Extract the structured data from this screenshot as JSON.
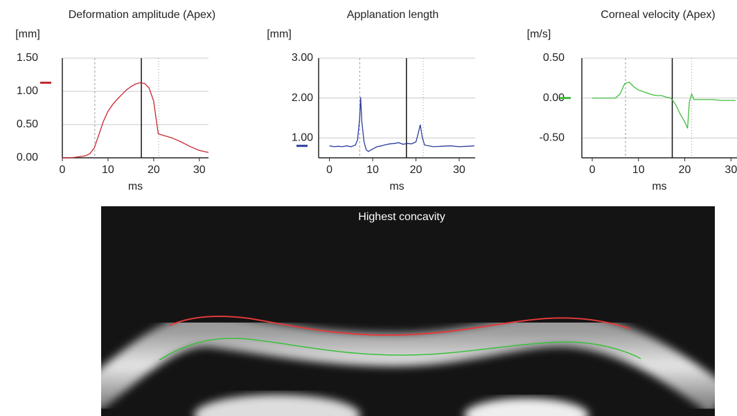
{
  "chart_data": [
    {
      "type": "line",
      "title": "Deformation amplitude (Apex)",
      "y_label": "[mm]",
      "x_label": "ms",
      "xlim": [
        0,
        32
      ],
      "xticks": [
        0,
        10,
        20,
        30
      ],
      "ylim": [
        0,
        1.5
      ],
      "yticks": [
        {
          "value": 0,
          "label": "0.00"
        },
        {
          "value": 0.5,
          "label": "0.50"
        },
        {
          "value": 1,
          "label": "1.00"
        },
        {
          "value": 1.5,
          "label": "1.50"
        }
      ],
      "grid": true,
      "color": "#c4262e",
      "indicator": 1.13,
      "markers": [
        {
          "x": 7.1,
          "style": "dashed"
        },
        {
          "x": 17.3,
          "style": "solid"
        },
        {
          "x": 21.1,
          "style": "dotted"
        }
      ],
      "x": [
        0,
        1,
        2,
        3,
        4,
        5,
        6,
        7,
        8,
        9,
        10,
        11,
        12,
        13,
        14,
        15,
        16,
        17,
        18,
        19,
        20,
        20.5,
        21,
        22,
        24,
        26,
        28,
        30,
        32
      ],
      "values": [
        0,
        0,
        0,
        0.01,
        0.02,
        0.03,
        0.06,
        0.15,
        0.35,
        0.55,
        0.7,
        0.8,
        0.88,
        0.95,
        1.02,
        1.07,
        1.11,
        1.13,
        1.12,
        1.05,
        0.85,
        0.6,
        0.36,
        0.34,
        0.3,
        0.24,
        0.17,
        0.11,
        0.08
      ]
    },
    {
      "type": "line",
      "title": "Applanation length",
      "y_label": "[mm]",
      "x_label": "ms",
      "xlim": [
        -2.5,
        33.7
      ],
      "xticks": [
        0,
        10,
        20,
        30
      ],
      "ylim": [
        0.5,
        3
      ],
      "yticks": [
        {
          "value": 1,
          "label": "1.00"
        },
        {
          "value": 2,
          "label": "2.00"
        },
        {
          "value": 3,
          "label": "3.00"
        }
      ],
      "grid": true,
      "color": "#2a3a9c",
      "indicator": 0.8,
      "markers": [
        {
          "x": 7.0,
          "style": "dashed"
        },
        {
          "x": 17.8,
          "style": "solid"
        },
        {
          "x": 21.7,
          "style": "dotted"
        }
      ],
      "x": [
        0,
        1,
        2,
        3,
        4,
        5,
        6,
        6.5,
        7,
        7.2,
        7.5,
        8,
        8.5,
        9,
        10,
        11,
        12,
        13,
        14,
        15,
        16,
        17,
        18,
        19,
        20,
        20.5,
        21,
        21.5,
        22,
        24,
        26,
        28,
        30,
        32,
        33.5
      ],
      "values": [
        0.8,
        0.78,
        0.79,
        0.78,
        0.8,
        0.78,
        0.82,
        0.95,
        1.5,
        2.02,
        1.4,
        0.9,
        0.7,
        0.66,
        0.72,
        0.78,
        0.8,
        0.83,
        0.85,
        0.86,
        0.88,
        0.84,
        0.86,
        0.85,
        0.9,
        1.1,
        1.33,
        1.0,
        0.82,
        0.78,
        0.79,
        0.8,
        0.78,
        0.79,
        0.8
      ]
    },
    {
      "type": "line",
      "title": "Corneal velocity (Apex)",
      "y_label": "[m/s]",
      "x_label": "ms",
      "xlim": [
        -2.25,
        31.3
      ],
      "xticks": [
        0,
        10,
        20,
        30
      ],
      "ylim": [
        -0.75,
        0.5
      ],
      "yticks": [
        {
          "value": -0.5,
          "label": "-0.50"
        },
        {
          "value": 0,
          "label": "0.00"
        },
        {
          "value": 0.5,
          "label": "0.50"
        }
      ],
      "grid": true,
      "color": "#3fbb3a",
      "indicator": 0,
      "markers": [
        {
          "x": 7.2,
          "style": "dashed"
        },
        {
          "x": 17.3,
          "style": "solid"
        },
        {
          "x": 21.5,
          "style": "dotted"
        }
      ],
      "x": [
        0,
        1,
        2,
        3,
        4,
        5,
        6,
        7,
        8,
        9,
        10,
        11,
        12,
        13,
        14,
        15,
        16,
        17,
        18,
        19,
        20,
        20.6,
        21,
        21.5,
        22,
        24,
        26,
        28,
        31
      ],
      "values": [
        0,
        0,
        0,
        0,
        0,
        0,
        0.05,
        0.18,
        0.2,
        0.14,
        0.1,
        0.08,
        0.06,
        0.04,
        0.03,
        0.03,
        0.01,
        0,
        -0.08,
        -0.2,
        -0.3,
        -0.38,
        -0.05,
        0.05,
        -0.02,
        -0.02,
        -0.02,
        -0.03,
        -0.03
      ]
    }
  ],
  "image": {
    "title": "Highest concavity"
  }
}
